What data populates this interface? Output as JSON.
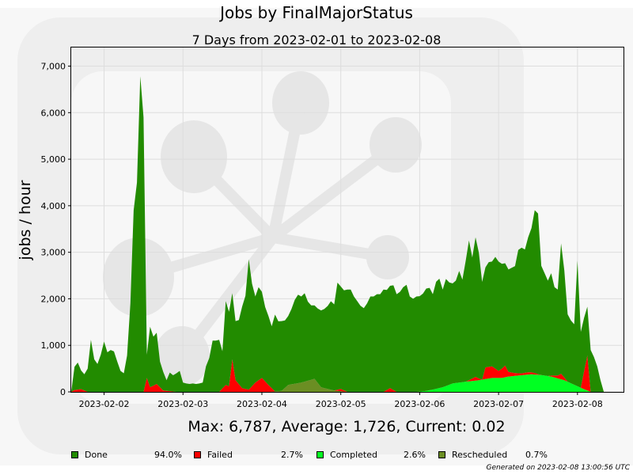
{
  "title": "Jobs by FinalMajorStatus",
  "subtitle": "7 Days from 2023-02-01 to 2023-02-08",
  "stats": "Max: 6,787, Average: 1,726, Current: 0.02",
  "generated": "Generated on 2023-02-08 13:00:56 UTC",
  "legend": [
    {
      "name": "Done",
      "pct": "94.0%",
      "color": "#228b00"
    },
    {
      "name": "Failed",
      "pct": "2.7%",
      "color": "#ff0000"
    },
    {
      "name": "Completed",
      "pct": "2.6%",
      "color": "#00ff22"
    },
    {
      "name": "Rescheduled",
      "pct": "0.7%",
      "color": "#6b8e23"
    }
  ],
  "chart_data": {
    "type": "area",
    "stacked": true,
    "title": "7 Days from 2023-02-01 to 2023-02-08",
    "ylabel": "jobs / hour",
    "ylim": [
      0,
      7400
    ],
    "xlim": [
      "2023-02-01 14:00",
      "2023-02-08 16:00"
    ],
    "x_ticks": [
      "2023-02-02",
      "2023-02-03",
      "2023-02-04",
      "2023-02-05",
      "2023-02-06",
      "2023-02-07",
      "2023-02-08"
    ],
    "y_ticks": [
      "0",
      "1,000",
      "2,000",
      "3,000",
      "4,000",
      "5,000",
      "6,000",
      "7,000"
    ],
    "grid": true,
    "x_unit": "hours since 2023-02-01 14:00",
    "series": [
      {
        "name": "Rescheduled",
        "color": "#6b8e23",
        "points": [
          [
            0,
            0
          ],
          [
            60,
            0
          ],
          [
            64,
            20
          ],
          [
            66,
            150
          ],
          [
            70,
            200
          ],
          [
            74,
            280
          ],
          [
            76,
            100
          ],
          [
            80,
            30
          ],
          [
            84,
            0
          ],
          [
            168,
            0
          ]
        ]
      },
      {
        "name": "Completed",
        "color": "#00ff22",
        "points": [
          [
            0,
            0
          ],
          [
            105,
            0
          ],
          [
            108,
            20
          ],
          [
            110,
            50
          ],
          [
            113,
            100
          ],
          [
            116,
            180
          ],
          [
            120,
            220
          ],
          [
            124,
            250
          ],
          [
            128,
            300
          ],
          [
            131,
            300
          ],
          [
            133,
            330
          ],
          [
            136,
            350
          ],
          [
            140,
            380
          ],
          [
            143,
            360
          ],
          [
            146,
            330
          ],
          [
            150,
            250
          ],
          [
            154,
            120
          ],
          [
            158,
            0
          ],
          [
            168,
            0
          ]
        ]
      },
      {
        "name": "Failed",
        "color": "#ff0000",
        "points": [
          [
            0,
            0
          ],
          [
            1,
            40
          ],
          [
            3,
            60
          ],
          [
            5,
            0
          ],
          [
            22,
            0
          ],
          [
            23,
            300
          ],
          [
            24,
            100
          ],
          [
            26,
            170
          ],
          [
            28,
            30
          ],
          [
            32,
            0
          ],
          [
            45,
            0
          ],
          [
            47,
            150
          ],
          [
            48,
            120
          ],
          [
            49,
            700
          ],
          [
            50,
            250
          ],
          [
            52,
            80
          ],
          [
            54,
            50
          ],
          [
            56,
            200
          ],
          [
            58,
            300
          ],
          [
            60,
            150
          ],
          [
            62,
            0
          ],
          [
            80,
            0
          ],
          [
            82,
            50
          ],
          [
            84,
            0
          ],
          [
            95,
            0
          ],
          [
            97,
            80
          ],
          [
            99,
            0
          ],
          [
            120,
            0
          ],
          [
            123,
            80
          ],
          [
            125,
            0
          ],
          [
            123.1,
            0
          ],
          [
            124,
            250
          ],
          [
            128,
            250
          ],
          [
            130,
            150
          ],
          [
            132,
            250
          ],
          [
            133,
            100
          ],
          [
            135,
            60
          ],
          [
            137,
            40
          ],
          [
            139,
            50
          ],
          [
            141,
            30
          ],
          [
            143,
            0
          ],
          [
            145,
            0
          ],
          [
            148,
            60
          ],
          [
            149,
            120
          ],
          [
            151,
            0
          ],
          [
            155,
            0
          ],
          [
            157,
            750
          ],
          [
            158,
            0
          ],
          [
            168,
            0
          ]
        ]
      },
      {
        "name": "Done",
        "color": "#228b00",
        "points": [
          [
            0,
            0
          ],
          [
            1,
            500
          ],
          [
            2,
            580
          ],
          [
            3,
            400
          ],
          [
            4,
            350
          ],
          [
            5,
            500
          ],
          [
            6,
            1120
          ],
          [
            7,
            700
          ],
          [
            8,
            600
          ],
          [
            9,
            800
          ],
          [
            10,
            1080
          ],
          [
            11,
            850
          ],
          [
            12,
            900
          ],
          [
            13,
            870
          ],
          [
            14,
            650
          ],
          [
            15,
            450
          ],
          [
            16,
            400
          ],
          [
            17,
            780
          ],
          [
            18,
            1900
          ],
          [
            19,
            3900
          ],
          [
            20,
            4500
          ],
          [
            21,
            6780
          ],
          [
            22,
            5900
          ],
          [
            23,
            500
          ],
          [
            24,
            1300
          ],
          [
            25,
            1050
          ],
          [
            26,
            1100
          ],
          [
            27,
            550
          ],
          [
            28,
            400
          ],
          [
            29,
            230
          ],
          [
            30,
            400
          ],
          [
            31,
            350
          ],
          [
            32,
            400
          ],
          [
            33,
            450
          ],
          [
            34,
            200
          ],
          [
            35,
            180
          ],
          [
            36,
            170
          ],
          [
            37,
            180
          ],
          [
            38,
            170
          ],
          [
            39,
            180
          ],
          [
            40,
            200
          ],
          [
            41,
            550
          ],
          [
            42,
            730
          ],
          [
            43,
            1100
          ],
          [
            44,
            1100
          ],
          [
            45,
            1120
          ],
          [
            46,
            800
          ],
          [
            47,
            1800
          ],
          [
            48,
            1600
          ],
          [
            49,
            1420
          ],
          [
            50,
            1270
          ],
          [
            51,
            1380
          ],
          [
            52,
            1750
          ],
          [
            53,
            2000
          ],
          [
            54,
            2800
          ],
          [
            55,
            2200
          ],
          [
            56,
            1850
          ],
          [
            57,
            2000
          ],
          [
            58,
            1850
          ],
          [
            59,
            1600
          ],
          [
            60,
            1480
          ],
          [
            61,
            1330
          ],
          [
            62,
            1650
          ],
          [
            63,
            1500
          ],
          [
            64,
            1500
          ],
          [
            65,
            1450
          ],
          [
            66,
            1480
          ],
          [
            67,
            1620
          ],
          [
            68,
            1800
          ],
          [
            69,
            1900
          ],
          [
            70,
            1850
          ],
          [
            71,
            1900
          ],
          [
            72,
            1700
          ],
          [
            73,
            1600
          ],
          [
            74,
            1580
          ],
          [
            75,
            1600
          ],
          [
            76,
            1650
          ],
          [
            77,
            1700
          ],
          [
            78,
            1780
          ],
          [
            79,
            1900
          ],
          [
            80,
            1850
          ],
          [
            81,
            2300
          ],
          [
            82,
            2200
          ],
          [
            83,
            2150
          ],
          [
            84,
            2200
          ],
          [
            85,
            2200
          ],
          [
            86,
            2050
          ],
          [
            87,
            1950
          ],
          [
            88,
            1850
          ],
          [
            89,
            1800
          ],
          [
            90,
            1900
          ],
          [
            91,
            2050
          ],
          [
            92,
            2050
          ],
          [
            93,
            2100
          ],
          [
            94,
            2100
          ],
          [
            95,
            2200
          ],
          [
            96,
            2150
          ],
          [
            97,
            2200
          ],
          [
            98,
            2250
          ],
          [
            99,
            2100
          ],
          [
            100,
            2150
          ],
          [
            101,
            2250
          ],
          [
            102,
            2300
          ],
          [
            103,
            2050
          ],
          [
            104,
            2000
          ],
          [
            105,
            2050
          ],
          [
            106,
            2050
          ],
          [
            107,
            2100
          ],
          [
            108,
            2200
          ],
          [
            109,
            2200
          ],
          [
            110,
            2050
          ],
          [
            111,
            2300
          ],
          [
            112,
            2350
          ],
          [
            113,
            2100
          ],
          [
            114,
            2300
          ],
          [
            115,
            2200
          ],
          [
            116,
            2150
          ],
          [
            117,
            2200
          ],
          [
            118,
            2400
          ],
          [
            119,
            2200
          ],
          [
            120,
            2600
          ],
          [
            121,
            3000
          ],
          [
            122,
            2600
          ],
          [
            123,
            3000
          ],
          [
            124,
            2700
          ],
          [
            125,
            2100
          ],
          [
            126,
            2150
          ],
          [
            127,
            2250
          ],
          [
            128,
            2250
          ],
          [
            129,
            2400
          ],
          [
            130,
            2350
          ],
          [
            131,
            2250
          ],
          [
            132,
            2200
          ],
          [
            133,
            2200
          ],
          [
            134,
            2250
          ],
          [
            135,
            2300
          ],
          [
            136,
            2650
          ],
          [
            137,
            2700
          ],
          [
            138,
            2650
          ],
          [
            139,
            2900
          ],
          [
            140,
            3100
          ],
          [
            141,
            3500
          ],
          [
            142,
            3450
          ],
          [
            143,
            2350
          ],
          [
            144,
            2200
          ],
          [
            145,
            2050
          ],
          [
            146,
            2200
          ],
          [
            147,
            1900
          ],
          [
            148,
            1850
          ],
          [
            149,
            2800
          ],
          [
            150,
            2300
          ],
          [
            151,
            1450
          ],
          [
            152,
            1350
          ],
          [
            153,
            1300
          ],
          [
            154,
            2700
          ],
          [
            155,
            1200
          ],
          [
            156,
            1150
          ],
          [
            157,
            1050
          ],
          [
            158,
            900
          ],
          [
            159,
            750
          ],
          [
            160,
            550
          ],
          [
            161,
            250
          ],
          [
            162,
            0
          ],
          [
            168,
            0
          ]
        ]
      }
    ]
  }
}
